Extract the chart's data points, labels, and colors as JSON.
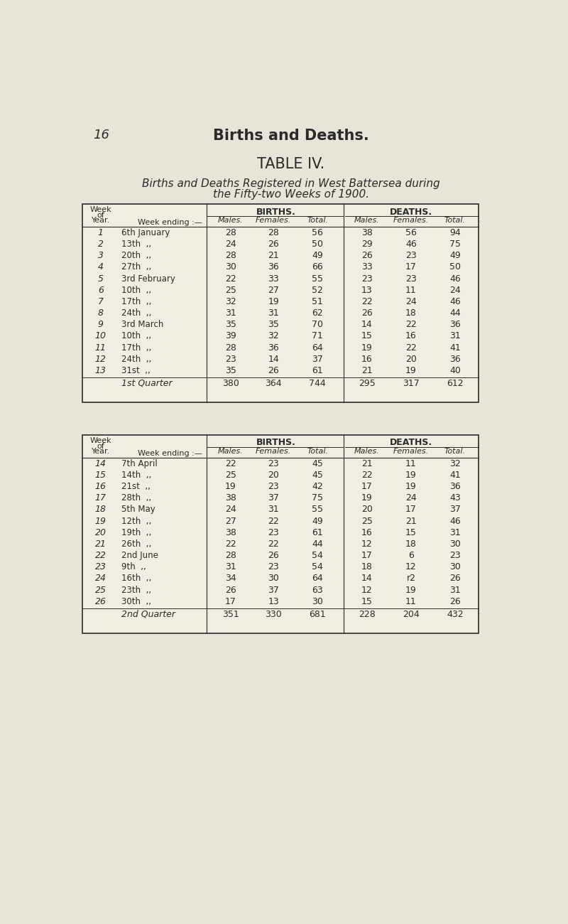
{
  "page_number": "16",
  "header_title": "Births and Deaths.",
  "table_title": "TABLE IV.",
  "subtitle_line1": "Births and Deaths Registered in West Battersea during",
  "subtitle_line2": "the Fifty-two Weeks of 1900.",
  "bg_color": "#e8e4d8",
  "table_bg": "#f0ede3",
  "text_color": "#2a2a2a",
  "col_headers_births": "BIRTHS.",
  "col_headers_deaths": "DEATHS.",
  "col_sub_headers": [
    "Males.",
    "Females.",
    "Total.",
    "Males.",
    "Females.",
    "Total."
  ],
  "table1_rows": [
    [
      "1",
      "6th January",
      "28",
      "28",
      "56",
      "38",
      "56",
      "94"
    ],
    [
      "2",
      "13th  ,,",
      "24",
      "26",
      "50",
      "29",
      "46",
      "75"
    ],
    [
      "3",
      "20th  ,,",
      "28",
      "21",
      "49",
      "26",
      "23",
      "49"
    ],
    [
      "4",
      "27th  ,,",
      "30",
      "36",
      "66",
      "33",
      "17",
      "50"
    ],
    [
      "5",
      "3rd February",
      "22",
      "33",
      "55",
      "23",
      "23",
      "46"
    ],
    [
      "6",
      "10th  ,,",
      "25",
      "27",
      "52",
      "13",
      "11",
      "24"
    ],
    [
      "7",
      "17th  ,,",
      "32",
      "19",
      "51",
      "22",
      "24",
      "46"
    ],
    [
      "8",
      "24th  ,,",
      "31",
      "31",
      "62",
      "26",
      "18",
      "44"
    ],
    [
      "9",
      "3rd March",
      "35",
      "35",
      "70",
      "14",
      "22",
      "36"
    ],
    [
      "10",
      "10th  ,,",
      "39",
      "32",
      "71",
      "15",
      "16",
      "31"
    ],
    [
      "11",
      "17th  ,,",
      "28",
      "36",
      "64",
      "19",
      "22",
      "41"
    ],
    [
      "12",
      "24th  ,,",
      "23",
      "14",
      "37",
      "16",
      "20",
      "36"
    ],
    [
      "13",
      "31st  ,,",
      "35",
      "26",
      "61",
      "21",
      "19",
      "40"
    ]
  ],
  "table1_total_row": [
    "",
    "1st Quarter",
    "380",
    "364",
    "744",
    "295",
    "317",
    "612"
  ],
  "table2_rows": [
    [
      "14",
      "7th April",
      "22",
      "23",
      "45",
      "21",
      "11",
      "32"
    ],
    [
      "15",
      "14th  ,,",
      "25",
      "20",
      "45",
      "22",
      "19",
      "41"
    ],
    [
      "16",
      "21st  ,,",
      "19",
      "23",
      "42",
      "17",
      "19",
      "36"
    ],
    [
      "17",
      "28th  ,,",
      "38",
      "37",
      "75",
      "19",
      "24",
      "43"
    ],
    [
      "18",
      "5th May",
      "24",
      "31",
      "55",
      "20",
      "17",
      "37"
    ],
    [
      "19",
      "12th  ,,",
      "27",
      "22",
      "49",
      "25",
      "21",
      "46"
    ],
    [
      "20",
      "19th  ,,",
      "38",
      "23",
      "61",
      "16",
      "15",
      "31"
    ],
    [
      "21",
      "26th  ,,",
      "22",
      "22",
      "44",
      "12",
      "18",
      "30"
    ],
    [
      "22",
      "2nd June",
      "28",
      "26",
      "54",
      "17",
      "6",
      "23"
    ],
    [
      "23",
      "9th  ,,",
      "31",
      "23",
      "54",
      "18",
      "12",
      "30"
    ],
    [
      "24",
      "16th  ,,",
      "34",
      "30",
      "64",
      "14",
      "r2",
      "26"
    ],
    [
      "25",
      "23th  ,,",
      "26",
      "37",
      "63",
      "12",
      "19",
      "31"
    ],
    [
      "26",
      "30th  ,,",
      "17",
      "13",
      "30",
      "15",
      "11",
      "26"
    ]
  ],
  "table2_total_row": [
    "",
    "2nd Quarter",
    "351",
    "330",
    "681",
    "228",
    "204",
    "432"
  ]
}
